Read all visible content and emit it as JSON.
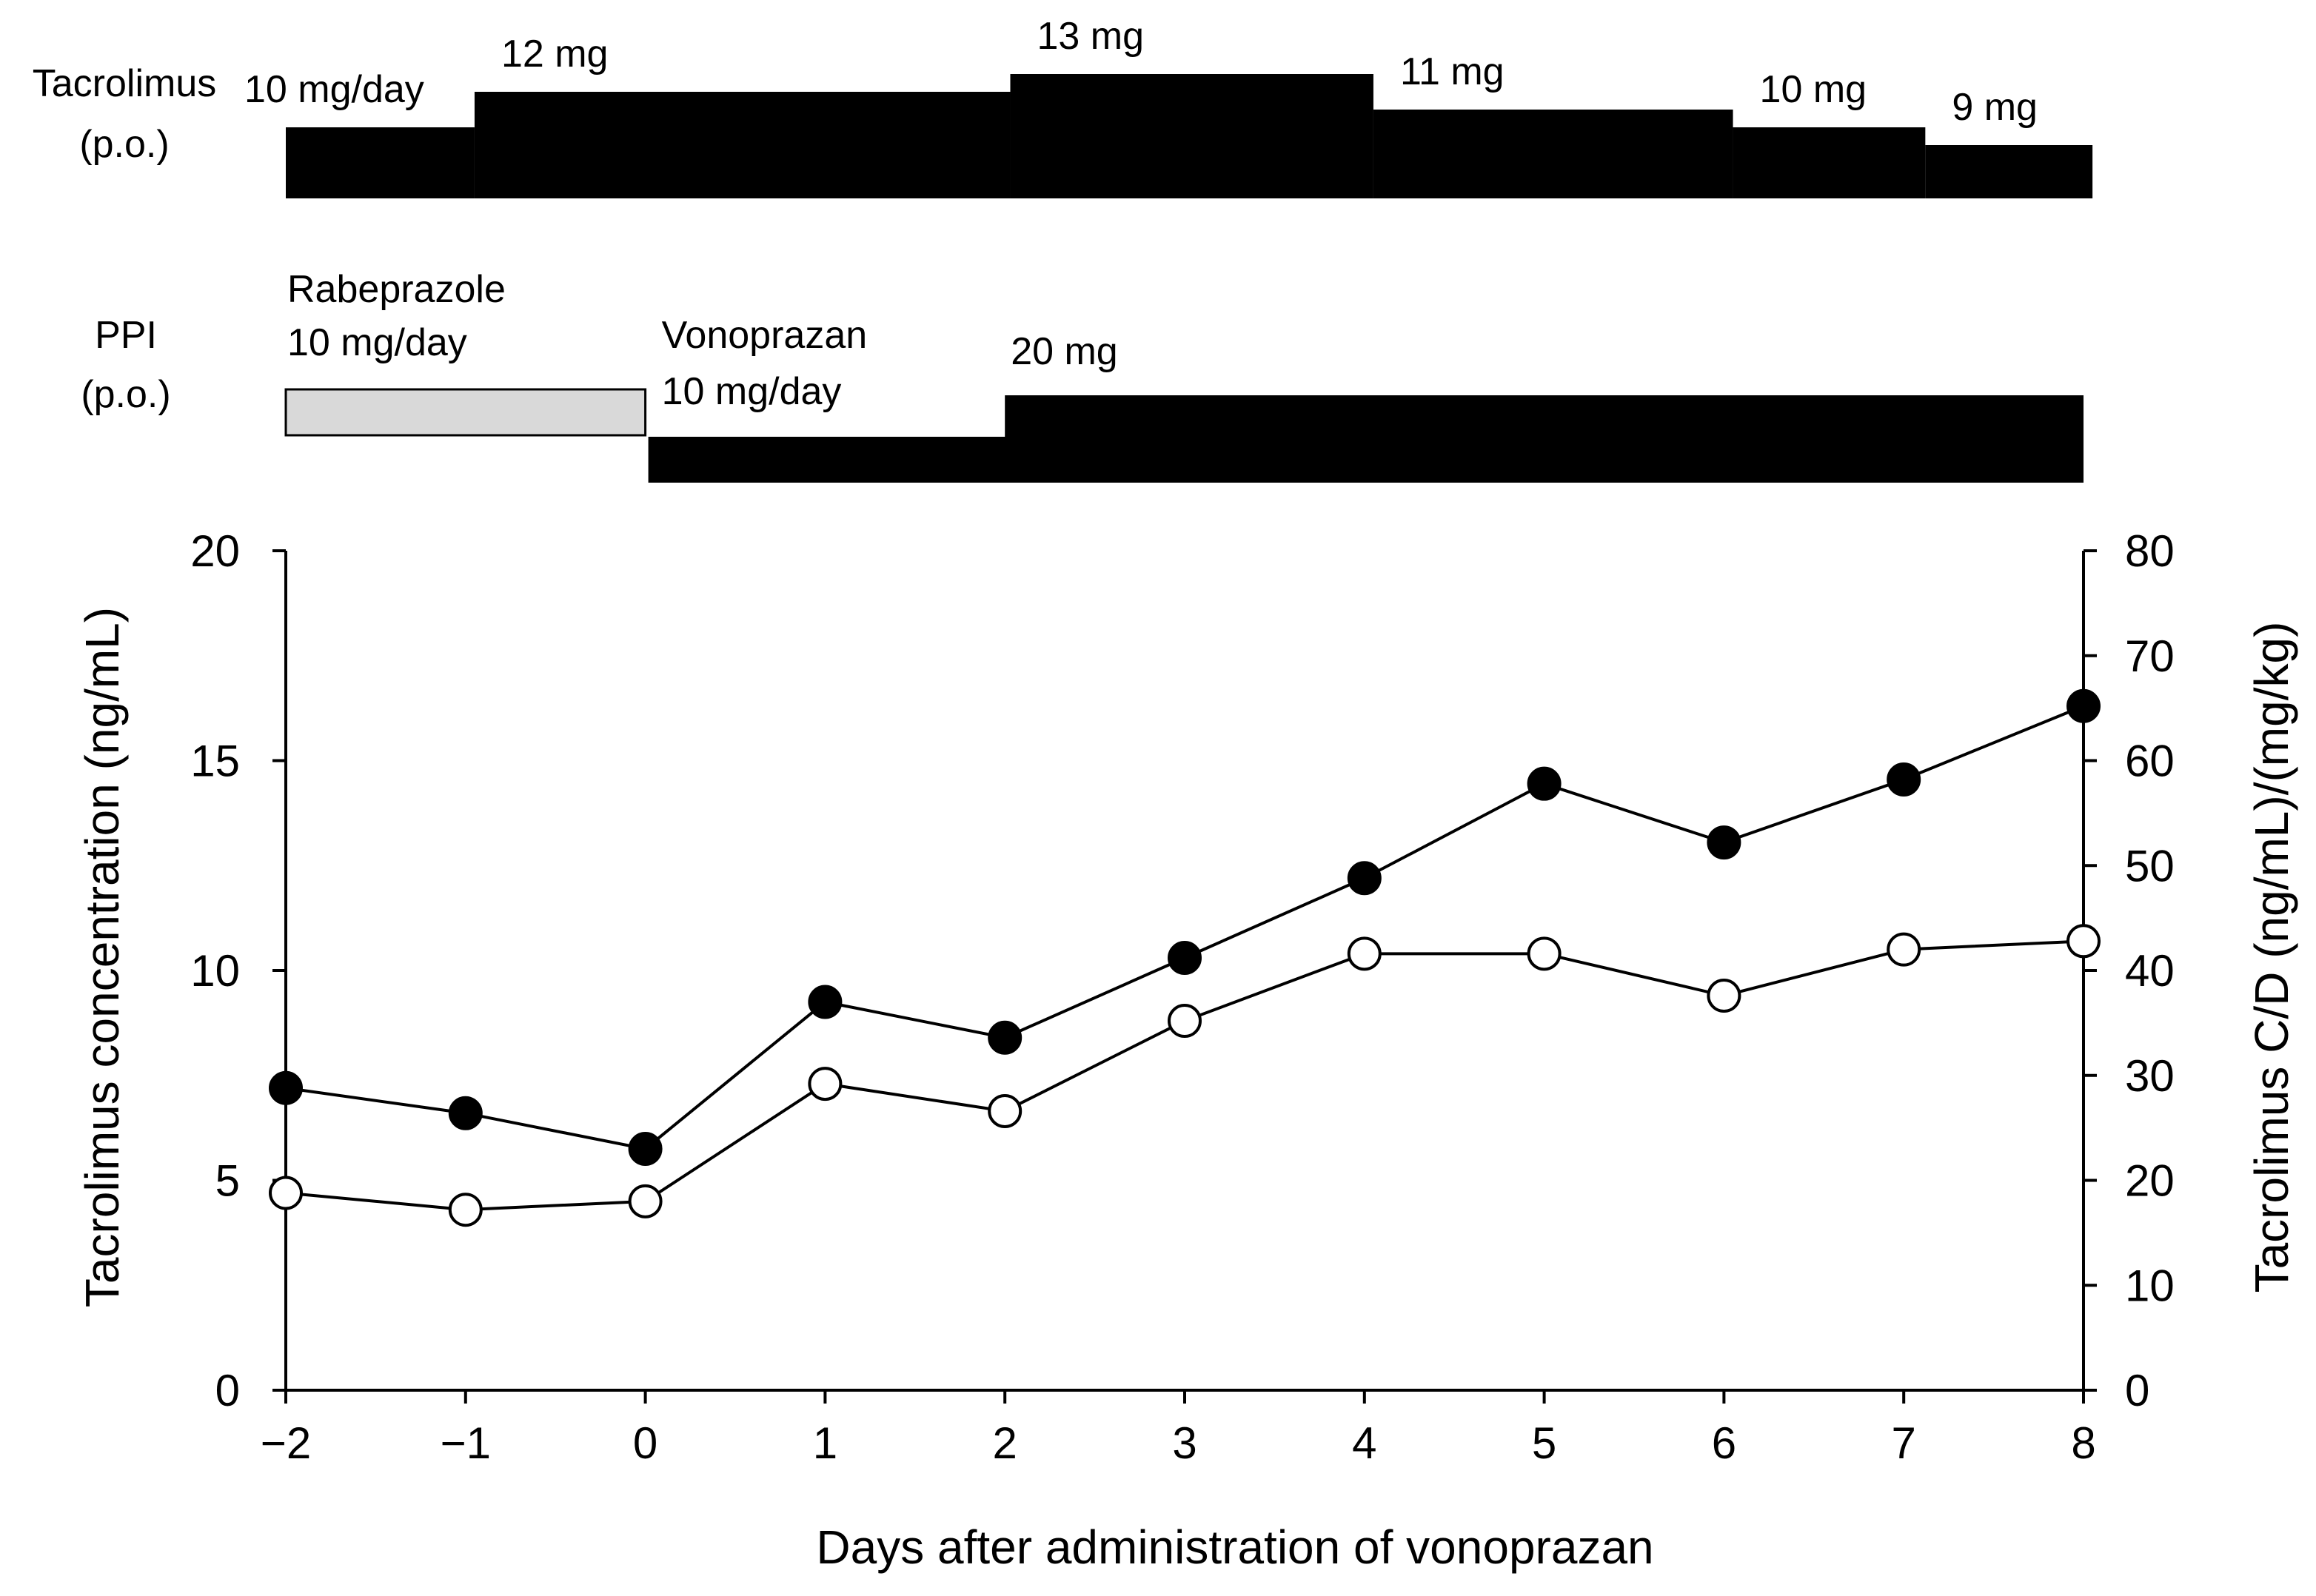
{
  "chart_data": {
    "type": "line",
    "xlabel": "Days after administration of vonoprazan",
    "ylabel_left": "Tacrolimus concentration (ng/mL)",
    "ylabel_right": "Tacrolimus C/D (ng/mL)/(mg/kg)",
    "x": [
      -2,
      -1,
      0,
      1,
      2,
      3,
      4,
      5,
      6,
      7,
      8
    ],
    "x_tick_labels": [
      "−2",
      "−1",
      "0",
      "1",
      "2",
      "3",
      "4",
      "5",
      "6",
      "7",
      "8"
    ],
    "xlim": [
      -2,
      8
    ],
    "ylim_left": [
      0,
      20
    ],
    "ylim_right": [
      0,
      80
    ],
    "y_ticks_left": [
      "0",
      "5",
      "10",
      "15",
      "20"
    ],
    "y_ticks_right": [
      "0",
      "10",
      "20",
      "30",
      "40",
      "50",
      "60",
      "70",
      "80"
    ],
    "grid": false,
    "series": [
      {
        "marker": "filled-circle",
        "axis": "right",
        "values": [
          28.8,
          26.4,
          23.0,
          37.0,
          33.6,
          41.2,
          48.8,
          57.8,
          52.2,
          58.2,
          65.2
        ]
      },
      {
        "marker": "open-circle",
        "axis": "right",
        "values": [
          18.8,
          17.2,
          18.0,
          29.2,
          26.6,
          35.2,
          41.6,
          41.6,
          37.6,
          42.0,
          42.8
        ]
      }
    ]
  },
  "dosing": {
    "tacrolimus": {
      "label_line1": "Tacrolimus",
      "label_line2": "(p.o.)",
      "segments": [
        {
          "start": -2.0,
          "end": -0.95,
          "dose": 10,
          "label": "10 mg/day"
        },
        {
          "start": -0.95,
          "end": 2.03,
          "dose": 12,
          "label": "12 mg"
        },
        {
          "start": 2.03,
          "end": 4.05,
          "dose": 13,
          "label": "13 mg"
        },
        {
          "start": 4.05,
          "end": 6.05,
          "dose": 11,
          "label": "11 mg"
        },
        {
          "start": 6.05,
          "end": 7.12,
          "dose": 10,
          "label": "10 mg"
        },
        {
          "start": 7.12,
          "end": 8.05,
          "dose": 9,
          "label": "9 mg"
        }
      ]
    },
    "ppi": {
      "label_line1": "PPI",
      "label_line2": "(p.o.)",
      "rabeprazole": {
        "start": -2.0,
        "end": 0.0,
        "dose": 10,
        "label_line1": "Rabeprazole",
        "label_line2": "10 mg/day"
      },
      "vonoprazan": [
        {
          "start": 0.0,
          "end": 2.0,
          "dose": 10,
          "label_line1": "Vonoprazan",
          "label_line2": "10 mg/day"
        },
        {
          "start": 2.0,
          "end": 8.0,
          "dose": 20,
          "label_line1": "20 mg"
        }
      ]
    }
  },
  "colors": {
    "ink": "#000000",
    "rabeprazole_fill": "#d9d9d9",
    "background": "#ffffff"
  }
}
